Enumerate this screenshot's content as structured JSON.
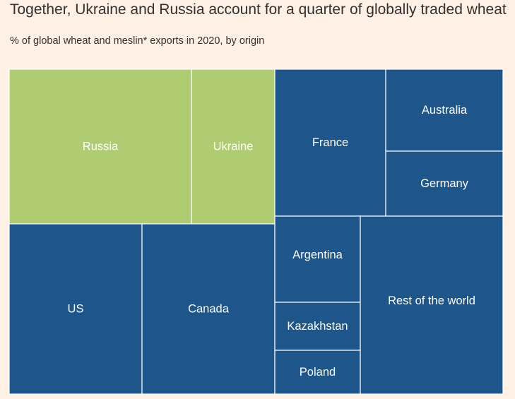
{
  "chart_data": {
    "type": "treemap",
    "title": "Together, Ukraine and Russia account for a quarter of globally traded wheat",
    "subtitle": "% of global wheat and meslin* exports in 2020, by origin",
    "highlight_color": "#b0cc73",
    "base_color": "#1e558b",
    "tiles": [
      {
        "label": "Russia",
        "value": 17.8,
        "highlight": true
      },
      {
        "label": "Ukraine",
        "value": 8.1,
        "highlight": true
      },
      {
        "label": "US",
        "value": 13.9,
        "highlight": false
      },
      {
        "label": "Canada",
        "value": 13.9,
        "highlight": false
      },
      {
        "label": "France",
        "value": 7.8,
        "highlight": false
      },
      {
        "label": "Australia",
        "value": 4.9,
        "highlight": false
      },
      {
        "label": "Germany",
        "value": 3.9,
        "highlight": false
      },
      {
        "label": "Argentina",
        "value": 3.8,
        "highlight": false
      },
      {
        "label": "Kazakhstan",
        "value": 2.1,
        "highlight": false
      },
      {
        "label": "Poland",
        "value": 1.9,
        "highlight": false
      },
      {
        "label": "Rest of the world",
        "value": 21.9,
        "highlight": false
      }
    ]
  }
}
